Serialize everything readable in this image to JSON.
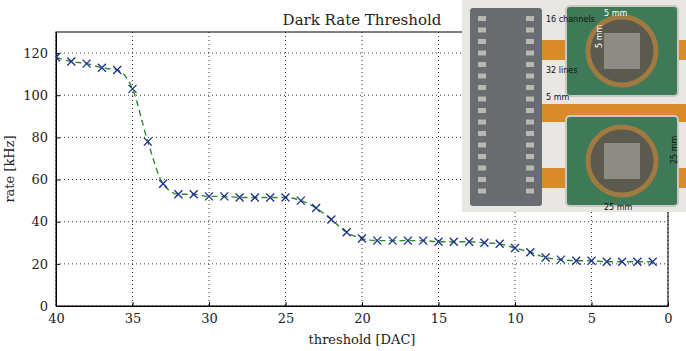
{
  "chart_data": {
    "type": "line",
    "title": "Dark Rate Threshold",
    "x_label": "threshold [DAC]",
    "y_label": "rate [kHz]",
    "x": [
      40,
      39,
      38,
      37,
      36,
      35,
      34,
      33,
      32,
      31,
      30,
      29,
      28,
      27,
      26,
      25,
      24,
      23,
      22,
      21,
      20,
      19,
      18,
      17,
      16,
      15,
      14,
      13,
      12,
      11,
      10,
      9,
      8,
      7,
      6,
      5,
      4,
      3,
      2,
      1
    ],
    "series": [
      {
        "type": "line",
        "color": "#2f8a2f",
        "line_style": "dashed",
        "values": [
          118,
          116,
          115,
          113,
          112,
          103,
          78,
          58,
          53,
          53,
          52,
          52,
          51.5,
          51.5,
          51.5,
          51.5,
          50,
          46.5,
          41,
          35,
          32,
          31,
          31,
          31,
          31,
          30.5,
          30.5,
          30.5,
          30,
          29.5,
          27.5,
          25.5,
          23,
          22,
          21.5,
          21.5,
          21,
          21,
          21,
          21
        ]
      },
      {
        "type": "scatter",
        "color": "#1c2f8f",
        "marker": "x",
        "values": [
          118,
          116,
          115,
          113,
          112,
          103,
          78,
          58,
          53,
          53,
          52,
          52,
          51.5,
          51.5,
          51.5,
          51.5,
          50,
          46.5,
          41,
          35,
          32,
          31,
          31,
          31,
          31,
          30.5,
          30.5,
          30.5,
          30,
          29.5,
          27.5,
          25.5,
          23,
          22,
          21.5,
          21.5,
          21,
          21,
          21,
          21
        ]
      }
    ],
    "xlim": [
      40,
      0
    ],
    "ylim": [
      0,
      130
    ],
    "xticks": [
      40,
      35,
      30,
      25,
      20,
      15,
      10,
      5,
      0
    ],
    "yticks": [
      0,
      20,
      40,
      60,
      80,
      100,
      120
    ],
    "grid": true,
    "annotations": [
      "16 channels",
      "32 lines",
      "5 mm",
      "5 mm",
      "5 mm",
      "25 mm",
      "25 mm"
    ]
  }
}
